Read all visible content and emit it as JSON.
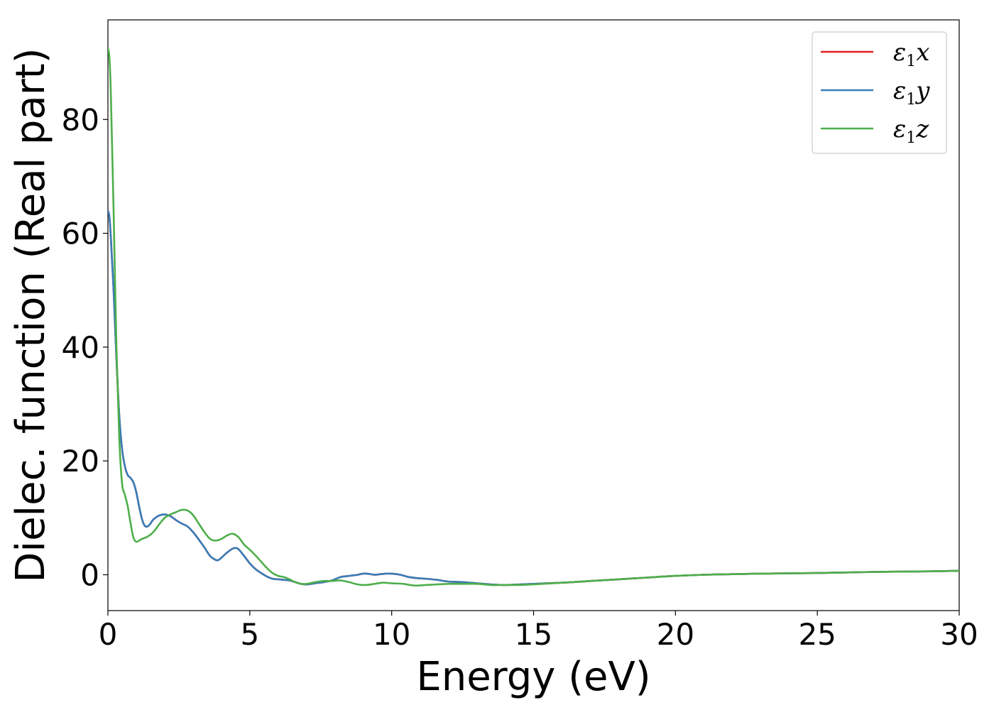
{
  "chart_data": {
    "type": "line",
    "xlabel": "Energy (eV)",
    "ylabel": "Dielec. function (Real part)",
    "xlim": [
      0,
      30
    ],
    "ylim": [
      -6.3,
      97.5
    ],
    "xticks": [
      0,
      5,
      10,
      15,
      20,
      25,
      30
    ],
    "yticks": [
      0,
      20,
      40,
      60,
      80
    ],
    "grid": false,
    "legend_position": "top-right",
    "series": [
      {
        "name": "ε1x",
        "symbol": "ε",
        "sub": "1",
        "var": "x",
        "color": "#e41a1c",
        "x": [
          0,
          0.05,
          0.1,
          0.2,
          0.3,
          0.4,
          0.5,
          0.6,
          0.7,
          0.8,
          0.9,
          1.0,
          1.1,
          1.2,
          1.3,
          1.4,
          1.5,
          1.6,
          1.8,
          2.0,
          2.2,
          2.4,
          2.6,
          2.8,
          3.0,
          3.2,
          3.4,
          3.6,
          3.8,
          3.9,
          4.0,
          4.2,
          4.4,
          4.5,
          4.6,
          4.8,
          5.0,
          5.2,
          5.4,
          5.6,
          5.8,
          6.0,
          6.2,
          6.4,
          6.6,
          6.8,
          7.0,
          7.3,
          7.6,
          7.9,
          8.2,
          8.5,
          8.8,
          9.0,
          9.2,
          9.4,
          9.6,
          9.8,
          10.0,
          10.3,
          10.6,
          10.9,
          11.2,
          11.6,
          12.0,
          12.5,
          13.0,
          13.5,
          14.0,
          14.5,
          15.0,
          16.0,
          17.0,
          18.0,
          19.0,
          20.0,
          21.0,
          22.0,
          23.0,
          24.0,
          25.0,
          26.0,
          27.0,
          28.0,
          29.0,
          30.0
        ],
        "y": [
          64.0,
          63.0,
          59.5,
          50.0,
          38.0,
          28.0,
          22.0,
          19.0,
          17.5,
          17.0,
          16.2,
          14.5,
          12.0,
          9.8,
          8.6,
          8.5,
          9.0,
          9.7,
          10.4,
          10.6,
          10.3,
          9.6,
          9.0,
          8.5,
          7.5,
          6.2,
          4.8,
          3.3,
          2.6,
          2.6,
          3.0,
          3.9,
          4.6,
          4.7,
          4.5,
          3.3,
          2.0,
          1.0,
          0.3,
          -0.3,
          -0.7,
          -0.8,
          -0.9,
          -1.0,
          -1.3,
          -1.6,
          -1.7,
          -1.5,
          -1.3,
          -1.0,
          -0.4,
          -0.2,
          0.0,
          0.2,
          0.15,
          0.0,
          0.1,
          0.2,
          0.2,
          0.0,
          -0.4,
          -0.6,
          -0.7,
          -0.9,
          -1.2,
          -1.3,
          -1.5,
          -1.7,
          -1.8,
          -1.7,
          -1.6,
          -1.4,
          -1.1,
          -0.8,
          -0.5,
          -0.2,
          0.0,
          0.1,
          0.2,
          0.25,
          0.3,
          0.4,
          0.5,
          0.55,
          0.6,
          0.7
        ]
      },
      {
        "name": "ε1y",
        "symbol": "ε",
        "sub": "1",
        "var": "y",
        "color": "#377eb8",
        "x": [
          0,
          0.05,
          0.1,
          0.2,
          0.3,
          0.4,
          0.5,
          0.6,
          0.7,
          0.8,
          0.9,
          1.0,
          1.1,
          1.2,
          1.3,
          1.4,
          1.5,
          1.6,
          1.8,
          2.0,
          2.2,
          2.4,
          2.6,
          2.8,
          3.0,
          3.2,
          3.4,
          3.6,
          3.8,
          3.9,
          4.0,
          4.2,
          4.4,
          4.5,
          4.6,
          4.8,
          5.0,
          5.2,
          5.4,
          5.6,
          5.8,
          6.0,
          6.2,
          6.4,
          6.6,
          6.8,
          7.0,
          7.3,
          7.6,
          7.9,
          8.2,
          8.5,
          8.8,
          9.0,
          9.2,
          9.4,
          9.6,
          9.8,
          10.0,
          10.3,
          10.6,
          10.9,
          11.2,
          11.6,
          12.0,
          12.5,
          13.0,
          13.5,
          14.0,
          14.5,
          15.0,
          16.0,
          17.0,
          18.0,
          19.0,
          20.0,
          21.0,
          22.0,
          23.0,
          24.0,
          25.0,
          26.0,
          27.0,
          28.0,
          29.0,
          30.0
        ],
        "y": [
          64.0,
          63.0,
          59.5,
          50.0,
          38.0,
          28.0,
          22.0,
          19.0,
          17.5,
          17.0,
          16.2,
          14.5,
          12.0,
          9.8,
          8.6,
          8.5,
          9.0,
          9.7,
          10.4,
          10.6,
          10.3,
          9.6,
          9.0,
          8.5,
          7.5,
          6.2,
          4.8,
          3.3,
          2.6,
          2.6,
          3.0,
          3.9,
          4.6,
          4.7,
          4.5,
          3.3,
          2.0,
          1.0,
          0.3,
          -0.3,
          -0.7,
          -0.8,
          -0.9,
          -1.0,
          -1.3,
          -1.6,
          -1.7,
          -1.5,
          -1.3,
          -1.0,
          -0.4,
          -0.2,
          0.0,
          0.2,
          0.15,
          0.0,
          0.1,
          0.2,
          0.2,
          0.0,
          -0.4,
          -0.6,
          -0.7,
          -0.9,
          -1.2,
          -1.3,
          -1.5,
          -1.7,
          -1.8,
          -1.7,
          -1.6,
          -1.4,
          -1.1,
          -0.8,
          -0.5,
          -0.2,
          0.0,
          0.1,
          0.2,
          0.25,
          0.3,
          0.4,
          0.5,
          0.55,
          0.6,
          0.7
        ]
      },
      {
        "name": "ε1z",
        "symbol": "ε",
        "sub": "1",
        "var": "z",
        "color": "#4daf4a",
        "x": [
          0,
          0.05,
          0.1,
          0.2,
          0.3,
          0.4,
          0.5,
          0.6,
          0.7,
          0.8,
          0.9,
          1.0,
          1.1,
          1.2,
          1.4,
          1.6,
          1.8,
          2.0,
          2.2,
          2.4,
          2.6,
          2.8,
          3.0,
          3.2,
          3.4,
          3.6,
          3.8,
          4.0,
          4.2,
          4.4,
          4.6,
          4.8,
          5.0,
          5.2,
          5.4,
          5.6,
          5.8,
          6.0,
          6.2,
          6.4,
          6.6,
          6.8,
          7.0,
          7.3,
          7.6,
          7.9,
          8.2,
          8.5,
          8.8,
          9.1,
          9.4,
          9.7,
          10.0,
          10.4,
          10.8,
          11.2,
          11.6,
          12.0,
          12.5,
          13.0,
          13.5,
          14.0,
          14.5,
          15.0,
          16.0,
          17.0,
          18.0,
          19.0,
          20.0,
          21.0,
          22.0,
          23.0,
          24.0,
          25.0,
          26.0,
          27.0,
          28.0,
          29.0,
          30.0
        ],
        "y": [
          92.5,
          91.0,
          85.0,
          64.0,
          40.0,
          24.0,
          16.0,
          14.0,
          12.0,
          9.0,
          6.5,
          5.8,
          6.0,
          6.3,
          6.7,
          7.5,
          8.8,
          10.0,
          10.6,
          11.0,
          11.4,
          11.3,
          10.5,
          9.0,
          7.5,
          6.3,
          6.0,
          6.3,
          6.9,
          7.2,
          6.6,
          5.3,
          4.4,
          3.4,
          2.3,
          1.2,
          0.3,
          -0.2,
          -0.4,
          -0.8,
          -1.3,
          -1.6,
          -1.6,
          -1.3,
          -1.1,
          -1.1,
          -1.0,
          -1.3,
          -1.7,
          -1.8,
          -1.6,
          -1.4,
          -1.5,
          -1.6,
          -1.9,
          -1.8,
          -1.7,
          -1.6,
          -1.6,
          -1.6,
          -1.8,
          -1.8,
          -1.8,
          -1.7,
          -1.4,
          -1.1,
          -0.8,
          -0.5,
          -0.2,
          0.0,
          0.1,
          0.2,
          0.25,
          0.3,
          0.4,
          0.5,
          0.55,
          0.6,
          0.7
        ]
      }
    ]
  }
}
